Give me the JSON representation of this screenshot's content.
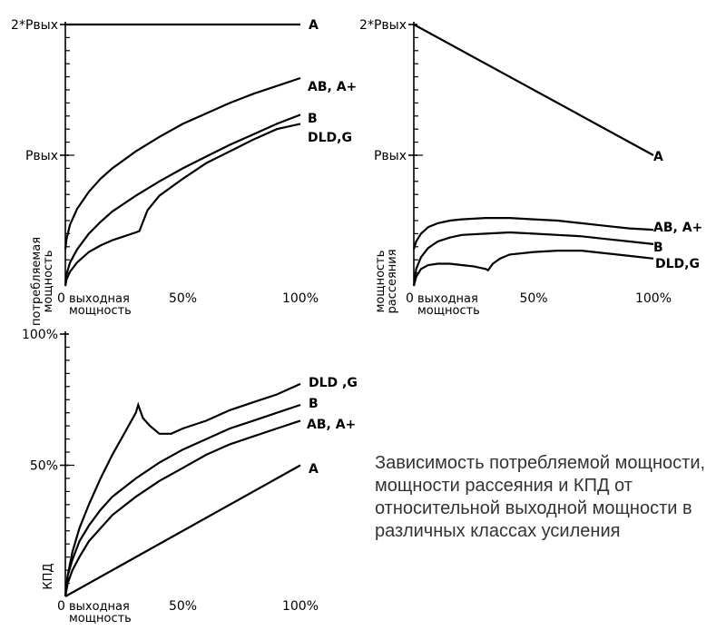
{
  "caption": "Зависимость потребляемой мощности, мощности рассеяния и КПД от относительной выходной мощности в различных классах усиления",
  "chart_data": [
    {
      "id": "consumed",
      "type": "line",
      "ylabel_lines": [
        "потребляемая",
        "мощность"
      ],
      "xlabel_lines": [
        "выходная",
        "мощность"
      ],
      "x_zero_label": "0",
      "x_ticks": [
        {
          "value": 50,
          "label": "50%"
        },
        {
          "value": 100,
          "label": "100%"
        }
      ],
      "y_ticks": [
        {
          "value": 2,
          "label": "2*Рвых"
        },
        {
          "value": 1,
          "label": "Рвых"
        }
      ],
      "xlim": [
        0,
        100
      ],
      "ylim": [
        0,
        2
      ],
      "series": [
        {
          "name": "A",
          "x": [
            0,
            100
          ],
          "y": [
            2.0,
            2.0
          ]
        },
        {
          "name": "AB, A+",
          "x": [
            0,
            0.5,
            2,
            5,
            10,
            15,
            20,
            30,
            40,
            50,
            60,
            70,
            80,
            90,
            100
          ],
          "y": [
            0.28,
            0.36,
            0.47,
            0.59,
            0.72,
            0.82,
            0.9,
            1.03,
            1.14,
            1.24,
            1.32,
            1.4,
            1.47,
            1.53,
            1.59
          ]
        },
        {
          "name": "B",
          "x": [
            0,
            0.5,
            2,
            5,
            10,
            15,
            20,
            30,
            40,
            50,
            60,
            70,
            80,
            90,
            100
          ],
          "y": [
            0.0,
            0.09,
            0.18,
            0.28,
            0.4,
            0.49,
            0.57,
            0.69,
            0.8,
            0.9,
            0.99,
            1.08,
            1.16,
            1.24,
            1.31
          ]
        },
        {
          "name": "DLD,G",
          "x": [
            0,
            0.5,
            2,
            5,
            10,
            15,
            20,
            25,
            30,
            31.5,
            35,
            40,
            50,
            60,
            70,
            80,
            90,
            100
          ],
          "y": [
            0.0,
            0.05,
            0.11,
            0.18,
            0.26,
            0.31,
            0.35,
            0.38,
            0.41,
            0.42,
            0.58,
            0.69,
            0.82,
            0.94,
            1.03,
            1.12,
            1.2,
            1.24
          ]
        }
      ]
    },
    {
      "id": "dissipated",
      "type": "line",
      "ylabel_lines": [
        "мощность",
        "рассеяния"
      ],
      "xlabel_lines": [
        "выходная",
        "мощность"
      ],
      "x_zero_label": "0",
      "x_ticks": [
        {
          "value": 50,
          "label": "50%"
        },
        {
          "value": 100,
          "label": "100%"
        }
      ],
      "y_ticks": [
        {
          "value": 2,
          "label": "2*Рвых"
        },
        {
          "value": 1,
          "label": "Рвых"
        }
      ],
      "xlim": [
        0,
        100
      ],
      "ylim": [
        0,
        2
      ],
      "series": [
        {
          "name": "A",
          "x": [
            0,
            100
          ],
          "y": [
            2.0,
            1.0
          ]
        },
        {
          "name": "AB, A+",
          "x": [
            0,
            1,
            3,
            6,
            10,
            15,
            20,
            30,
            40,
            50,
            60,
            70,
            80,
            90,
            100
          ],
          "y": [
            0.28,
            0.34,
            0.4,
            0.45,
            0.48,
            0.5,
            0.51,
            0.52,
            0.52,
            0.51,
            0.5,
            0.48,
            0.46,
            0.44,
            0.43
          ]
        },
        {
          "name": "B",
          "x": [
            0,
            1,
            3,
            6,
            10,
            15,
            20,
            30,
            40,
            50,
            60,
            70,
            80,
            90,
            100
          ],
          "y": [
            0.0,
            0.13,
            0.22,
            0.29,
            0.34,
            0.37,
            0.39,
            0.4,
            0.41,
            0.4,
            0.39,
            0.38,
            0.36,
            0.34,
            0.32
          ]
        },
        {
          "name": "DLD,G",
          "x": [
            0,
            1,
            3,
            6,
            10,
            15,
            20,
            25,
            30,
            31,
            33,
            36,
            40,
            50,
            60,
            70,
            80,
            90,
            100
          ],
          "y": [
            0.0,
            0.07,
            0.13,
            0.16,
            0.17,
            0.17,
            0.16,
            0.15,
            0.13,
            0.12,
            0.17,
            0.21,
            0.24,
            0.26,
            0.27,
            0.27,
            0.25,
            0.23,
            0.21
          ]
        }
      ]
    },
    {
      "id": "efficiency",
      "type": "line",
      "ylabel_lines": [
        "КПД"
      ],
      "xlabel_lines": [
        "выходная",
        "мощность"
      ],
      "x_zero_label": "0",
      "x_ticks": [
        {
          "value": 50,
          "label": "50%"
        },
        {
          "value": 100,
          "label": "100%"
        }
      ],
      "y_ticks": [
        {
          "value": 100,
          "label": "100%"
        },
        {
          "value": 50,
          "label": "50%"
        }
      ],
      "xlim": [
        0,
        100
      ],
      "ylim": [
        0,
        100
      ],
      "series": [
        {
          "name": "DLD ,G",
          "x": [
            0,
            1,
            3,
            6,
            10,
            15,
            20,
            25,
            30,
            31,
            33,
            36,
            40,
            45,
            50,
            60,
            70,
            80,
            90,
            100
          ],
          "y": [
            0,
            8,
            17,
            26,
            35,
            45,
            54,
            62,
            70,
            73,
            68,
            65,
            62,
            62,
            64,
            67,
            71,
            74,
            77,
            81
          ]
        },
        {
          "name": "B",
          "x": [
            0,
            1,
            3,
            6,
            10,
            15,
            20,
            30,
            40,
            50,
            60,
            70,
            80,
            90,
            100
          ],
          "y": [
            0,
            8,
            14,
            21,
            27,
            33,
            38,
            45,
            51,
            56,
            60,
            64,
            67,
            70,
            73
          ]
        },
        {
          "name": "AB, A+",
          "x": [
            0,
            1,
            3,
            6,
            10,
            15,
            20,
            30,
            40,
            50,
            60,
            70,
            80,
            90,
            100
          ],
          "y": [
            0,
            5,
            10,
            15,
            21,
            26,
            31,
            38,
            44,
            49,
            54,
            58,
            61,
            64,
            67
          ]
        },
        {
          "name": "A",
          "x": [
            0,
            100
          ],
          "y": [
            0,
            50
          ]
        }
      ]
    }
  ]
}
